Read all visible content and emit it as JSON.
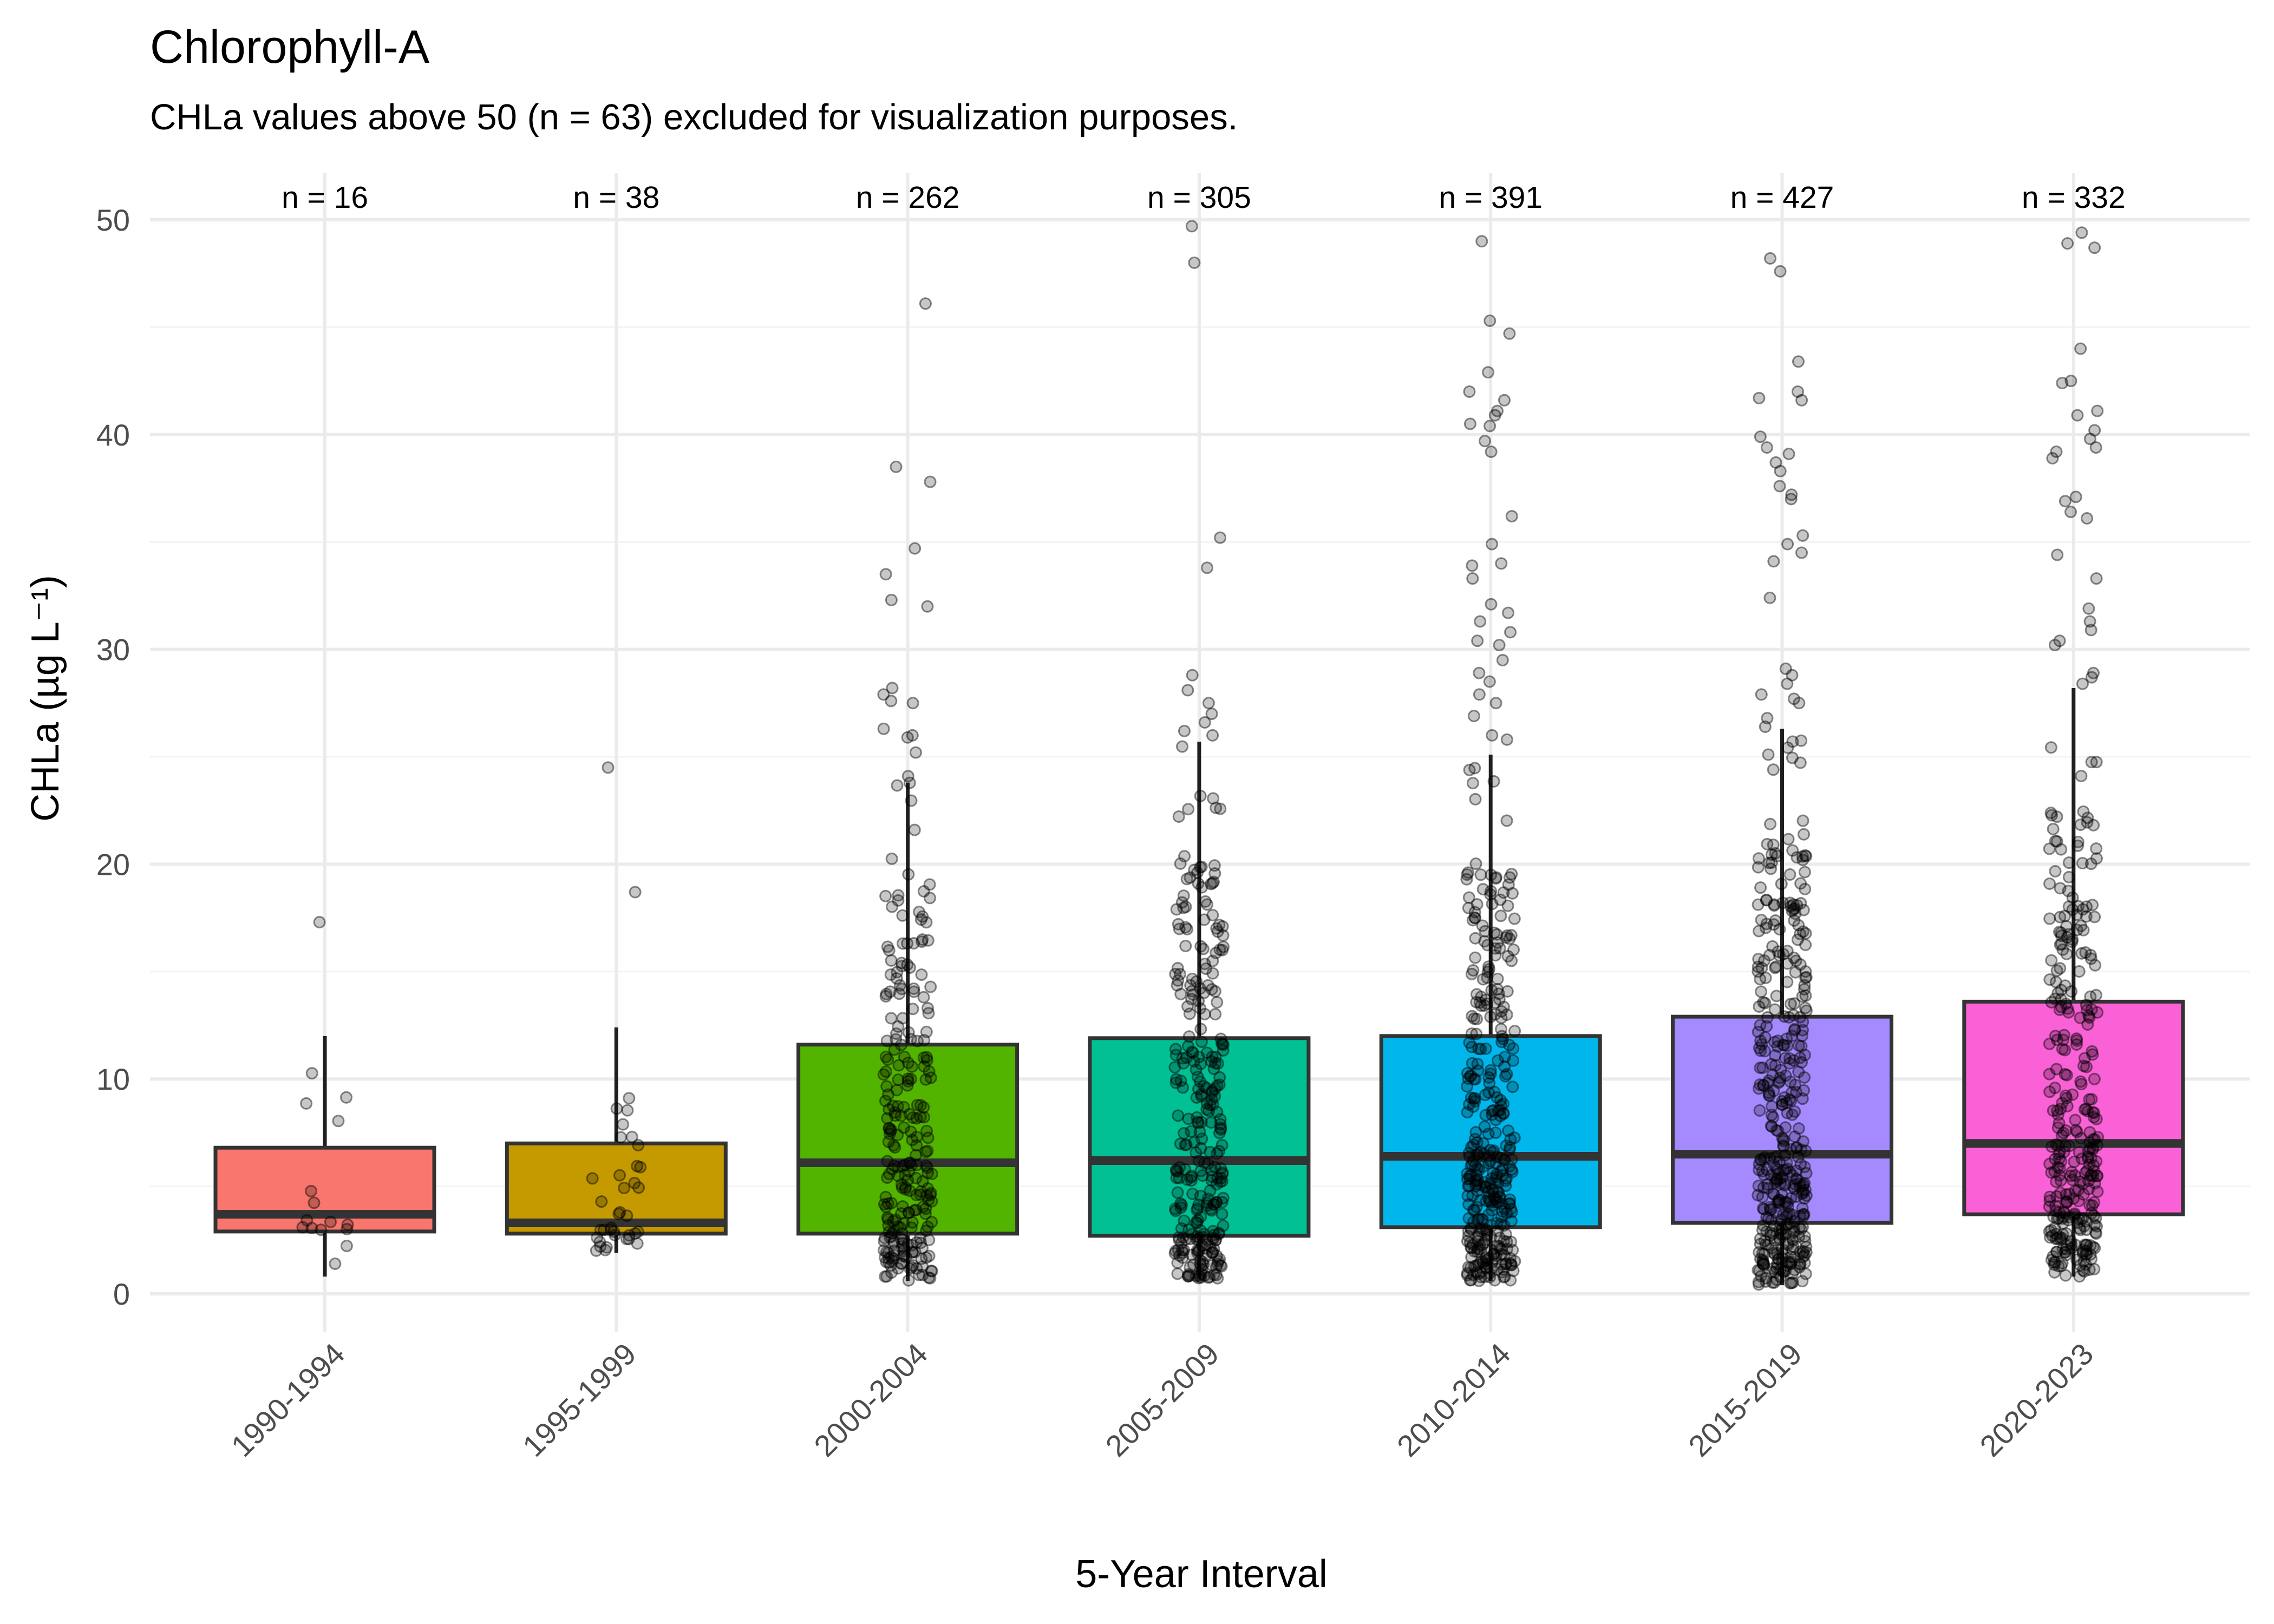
{
  "title": "Chlorophyll-A",
  "subtitle": "CHLa values above 50 (n = 63) excluded for visualization purposes.",
  "chart_data": {
    "type": "box",
    "title": "Chlorophyll-A",
    "subtitle": "CHLa values above 50 (n = 63) excluded for visualization purposes.",
    "xlabel": "5-Year Interval",
    "ylabel": "CHLa (µg L⁻¹)",
    "ylim": [
      -2,
      52
    ],
    "yticks": [
      0,
      10,
      20,
      30,
      40,
      50
    ],
    "ytick_labels": [
      "0",
      "10",
      "20",
      "30",
      "40",
      "50"
    ],
    "grid": true,
    "legend": "none",
    "categories": [
      "1990-1994",
      "1995-1999",
      "2000-2004",
      "2005-2009",
      "2010-2014",
      "2015-2019",
      "2020-2023"
    ],
    "counts": [
      "n = 16",
      "n = 38",
      "n = 262",
      "n = 305",
      "n = 391",
      "n = 427",
      "n = 332"
    ],
    "n_values": [
      16,
      38,
      262,
      305,
      391,
      427,
      332
    ],
    "colors": [
      "#F8766D",
      "#C49A00",
      "#53B400",
      "#00C094",
      "#00B6EB",
      "#A58AFF",
      "#FB61D7"
    ],
    "boxes": [
      {
        "category": "1990-1994",
        "whisker_low": 0.8,
        "q1": 2.9,
        "median": 3.7,
        "q3": 6.8,
        "whisker_high": 12.0
      },
      {
        "category": "1995-1999",
        "whisker_low": 1.9,
        "q1": 2.8,
        "median": 3.3,
        "q3": 7.0,
        "whisker_high": 12.4
      },
      {
        "category": "2000-2004",
        "whisker_low": 0.6,
        "q1": 2.8,
        "median": 6.1,
        "q3": 11.6,
        "whisker_high": 23.8
      },
      {
        "category": "2005-2009",
        "whisker_low": 0.7,
        "q1": 2.7,
        "median": 6.2,
        "q3": 11.9,
        "whisker_high": 25.7
      },
      {
        "category": "2010-2014",
        "whisker_low": 0.6,
        "q1": 3.1,
        "median": 6.4,
        "q3": 12.0,
        "whisker_high": 25.1
      },
      {
        "category": "2015-2019",
        "whisker_low": 0.4,
        "q1": 3.3,
        "median": 6.5,
        "q3": 12.9,
        "whisker_high": 26.3
      },
      {
        "category": "2020-2023",
        "whisker_low": 0.8,
        "q1": 3.7,
        "median": 7.0,
        "q3": 13.6,
        "whisker_high": 28.2
      }
    ],
    "outliers": [
      [
        17.3
      ],
      [
        24.5,
        18.7
      ],
      [
        46.1,
        38.5,
        37.8,
        34.7,
        33.5,
        32.3,
        32.0,
        28.2,
        27.9,
        27.6,
        27.5,
        26.3,
        26.0,
        25.9,
        25.2,
        24.1
      ],
      [
        49.7,
        48.0,
        35.2,
        33.8,
        28.8,
        28.1,
        27.5,
        27.0,
        26.6,
        26.2,
        26.0
      ],
      [
        49.0,
        45.3,
        44.7,
        42.9,
        42.0,
        41.6,
        41.1,
        40.9,
        40.5,
        40.4,
        39.7,
        39.2,
        36.2,
        34.9,
        34.0,
        33.9,
        33.3,
        32.1,
        31.7,
        31.3,
        30.8,
        30.4,
        30.2,
        29.5,
        28.9,
        28.5,
        27.9,
        27.5,
        26.9,
        26.0,
        25.8
      ],
      [
        48.2,
        47.6,
        43.4,
        42.0,
        41.7,
        41.6,
        39.9,
        39.4,
        39.1,
        38.7,
        38.3,
        37.6,
        37.2,
        37.0,
        35.3,
        34.9,
        34.5,
        34.1,
        32.4,
        29.1,
        28.8,
        28.4,
        27.9,
        27.7,
        27.5,
        26.8,
        26.4
      ],
      [
        49.4,
        48.9,
        48.7,
        44.0,
        42.5,
        42.4,
        41.1,
        40.9,
        40.2,
        39.8,
        39.4,
        39.2,
        38.9,
        37.1,
        36.9,
        36.4,
        36.1,
        34.4,
        33.3,
        31.9,
        31.3,
        30.9,
        30.4,
        30.2,
        28.9,
        28.7,
        28.4
      ]
    ]
  }
}
